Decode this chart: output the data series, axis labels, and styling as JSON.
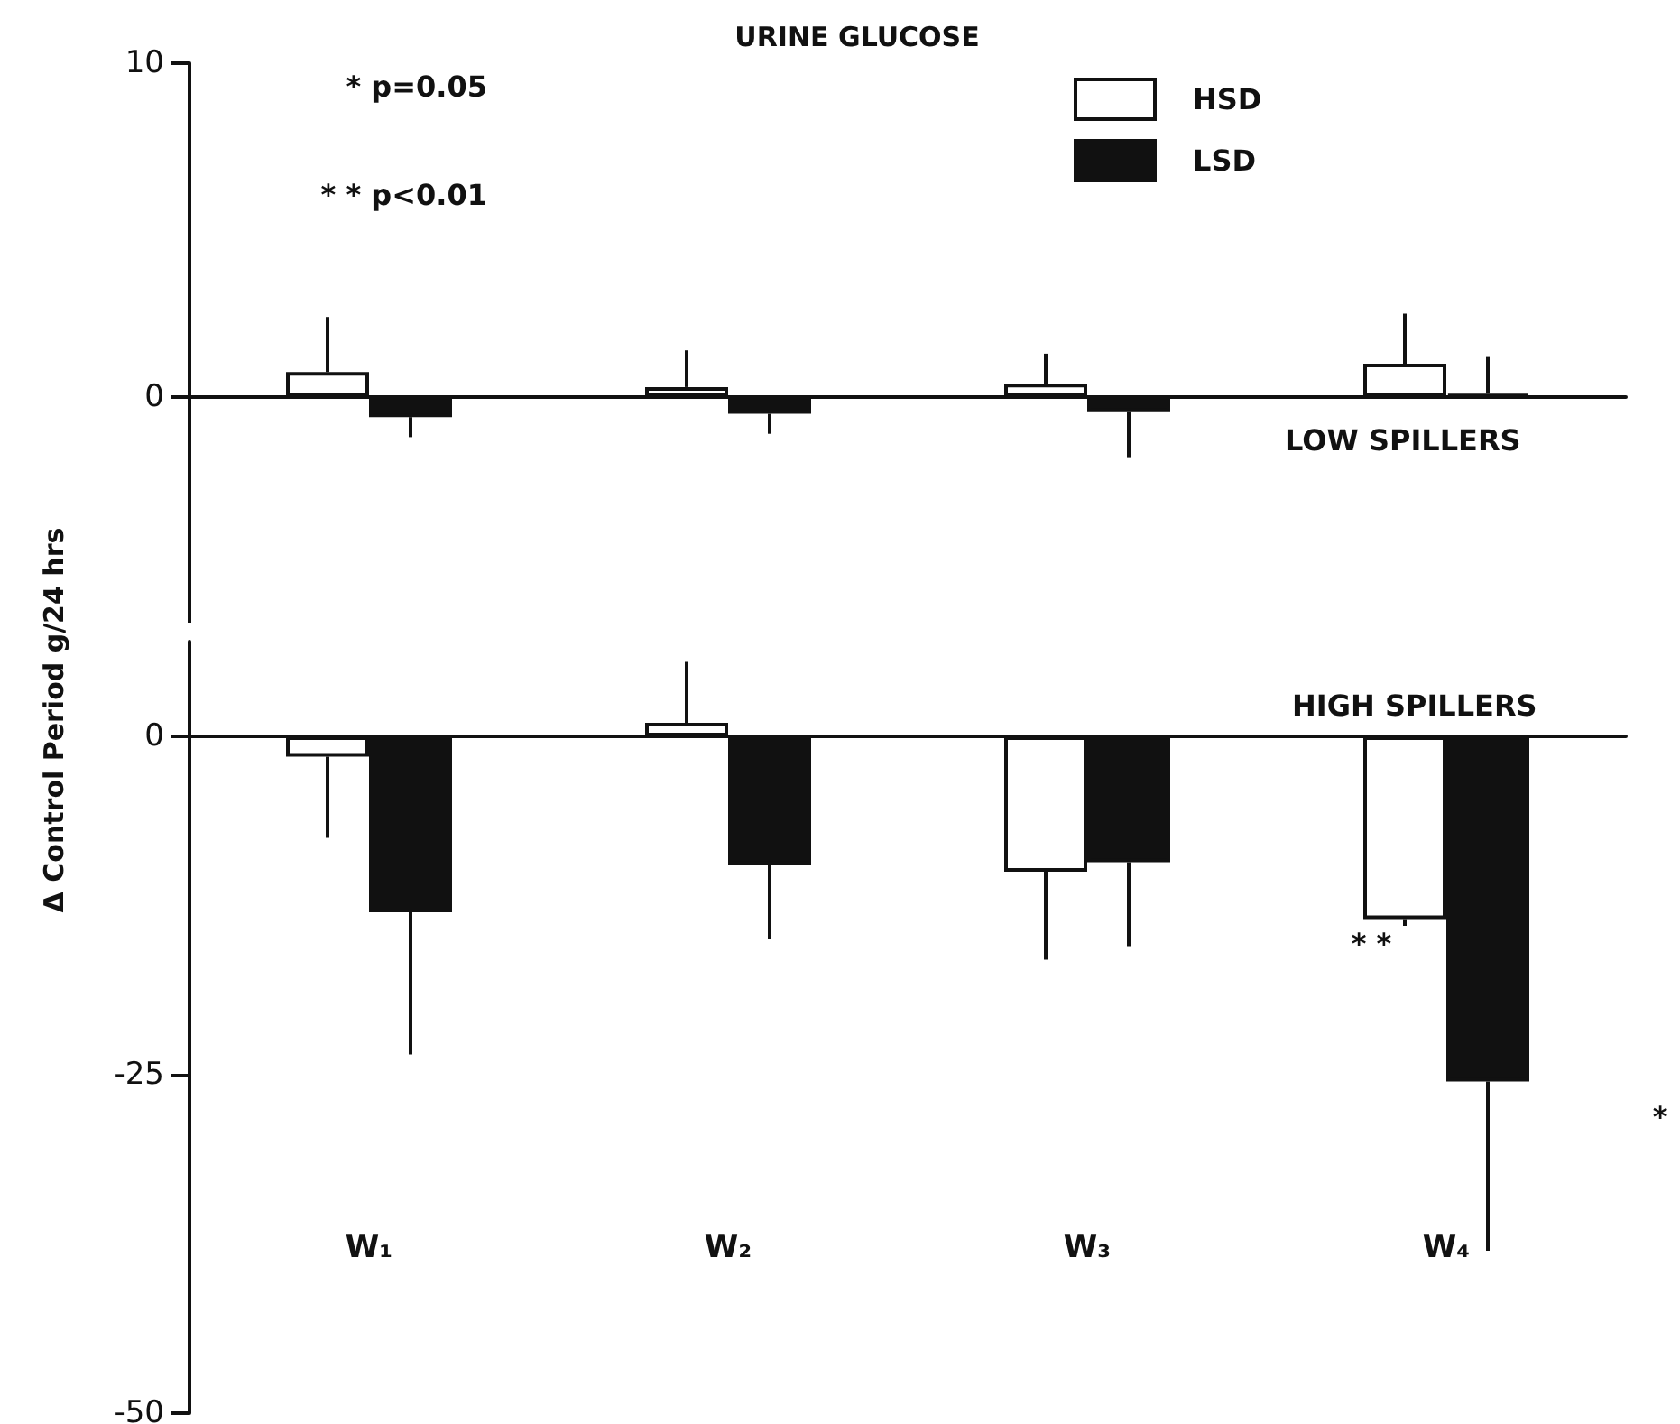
{
  "chart_data": [
    {
      "type": "bar",
      "title": "URINE GLUCOSE",
      "categories": [
        null,
        null,
        null,
        null
      ],
      "series": [
        {
          "name": "HSD",
          "color": "#ffffff",
          "values": [
            0.75,
            0.3,
            0.4,
            1.0
          ],
          "errors": [
            [
              0.75,
              2.4
            ],
            [
              0.3,
              1.4
            ],
            [
              0.4,
              1.3
            ],
            [
              1.0,
              2.5
            ]
          ]
        },
        {
          "name": "LSD",
          "color": "#111111",
          "values": [
            -0.6,
            -0.5,
            -0.45,
            0.1
          ],
          "errors": [
            [
              -1.2,
              -0.6
            ],
            [
              -1.1,
              -0.5
            ],
            [
              -1.8,
              -0.45
            ],
            [
              0.1,
              1.2
            ]
          ]
        }
      ],
      "ylim": [
        -7,
        10
      ],
      "yticks": [
        0,
        10
      ],
      "tick_labels": "y",
      "legend": "top right",
      "annotations": [
        "* p=0.05",
        "* * p<0.01",
        "LOW SPILLERS"
      ]
    },
    {
      "type": "bar",
      "ylabel": "Δ Control Period  g/24 hrs",
      "categories": [
        "W₁",
        "W₂",
        "W₃",
        "W₄"
      ],
      "series": [
        {
          "color": "#ffffff",
          "values": [
            -1.5,
            1,
            -10,
            -13.5
          ],
          "errors": [
            [
              -7.5,
              -1.5
            ],
            [
              1,
              5.5
            ],
            [
              -16.5,
              -10
            ],
            [
              -14,
              -13.5
            ]
          ]
        },
        {
          "color": "#111111",
          "values": [
            -13,
            -9.5,
            -9.3,
            -25.5
          ],
          "errors": [
            [
              -23.5,
              -13
            ],
            [
              -15,
              -9.5
            ],
            [
              -15.5,
              -9.3
            ],
            [
              -38,
              -25.5
            ]
          ]
        }
      ],
      "ylim": [
        -50,
        7
      ],
      "yticks": [
        -50,
        -25,
        0
      ],
      "annotations": [
        "HIGH SPILLERS",
        "* *",
        "*"
      ]
    }
  ]
}
